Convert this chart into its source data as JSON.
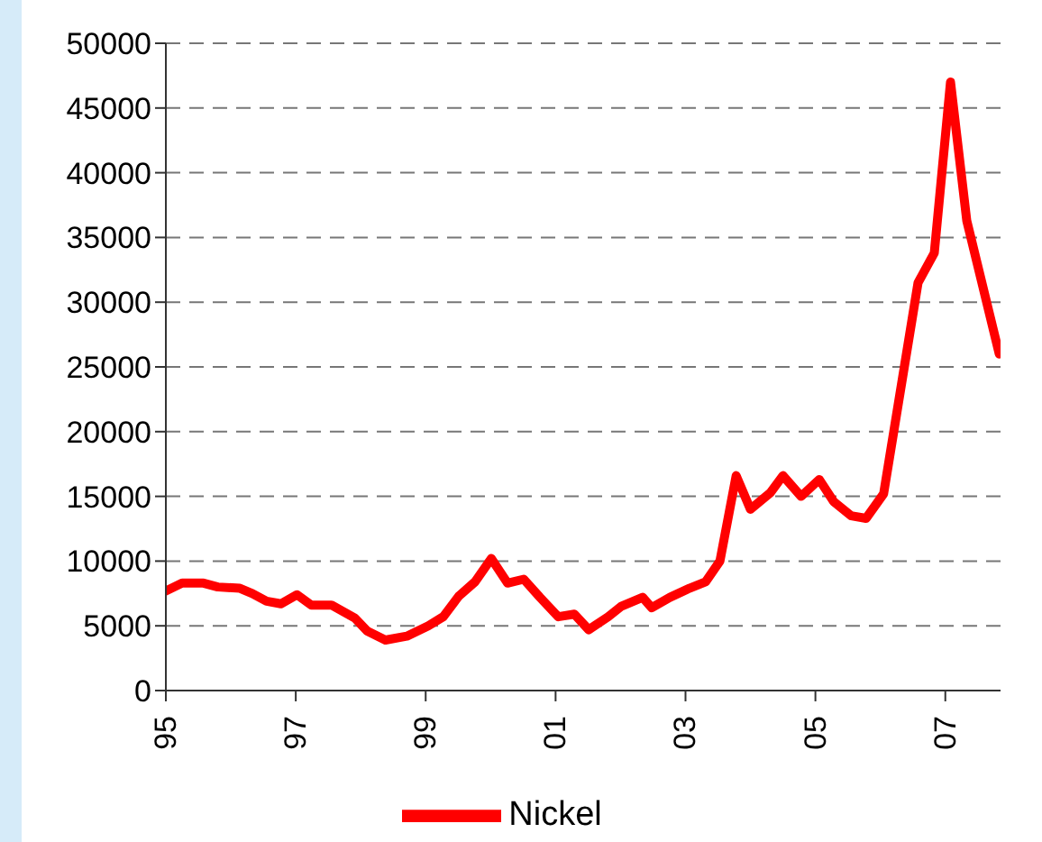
{
  "chart_data": {
    "type": "line",
    "x": [
      1995.0,
      1995.25,
      1995.58,
      1995.8,
      1996.14,
      1996.33,
      1996.55,
      1996.77,
      1997.02,
      1997.24,
      1997.55,
      1997.91,
      1998.1,
      1998.38,
      1998.71,
      1999.04,
      1999.27,
      1999.51,
      1999.76,
      2000.01,
      2000.26,
      2000.51,
      2000.76,
      2001.04,
      2001.29,
      2001.51,
      2001.81,
      2002.01,
      2002.34,
      2002.48,
      2002.76,
      2003.06,
      2003.31,
      2003.53,
      2003.78,
      2004.0,
      2004.31,
      2004.5,
      2004.78,
      2005.06,
      2005.28,
      2005.55,
      2005.78,
      2006.05,
      2006.58,
      2006.83,
      2007.08,
      2007.33,
      2007.83
    ],
    "series": [
      {
        "name": "Nickel",
        "color": "#ff0000",
        "values": [
          7700,
          8300,
          8300,
          8000,
          7900,
          7500,
          6900,
          6700,
          7400,
          6600,
          6600,
          5600,
          4600,
          3900,
          4200,
          5000,
          5700,
          7300,
          8400,
          10200,
          8300,
          8600,
          7200,
          5700,
          5900,
          4700,
          5700,
          6500,
          7200,
          6400,
          7200,
          7900,
          8400,
          10000,
          16600,
          14000,
          15300,
          16600,
          15000,
          16300,
          14600,
          13500,
          13300,
          15200,
          31500,
          33800,
          47000,
          36300,
          26000
        ]
      }
    ],
    "xlim": [
      1995,
      2007.85
    ],
    "xticks": [
      {
        "value": 1995,
        "label": "95"
      },
      {
        "value": 1997,
        "label": "97"
      },
      {
        "value": 1999,
        "label": "99"
      },
      {
        "value": 2001,
        "label": "01"
      },
      {
        "value": 2003,
        "label": "03"
      },
      {
        "value": 2005,
        "label": "05"
      },
      {
        "value": 2007,
        "label": "07"
      }
    ],
    "ylim": [
      0,
      50000
    ],
    "yticks": [
      0,
      5000,
      10000,
      15000,
      20000,
      25000,
      30000,
      35000,
      40000,
      45000,
      50000
    ],
    "grid": "y",
    "legend": "bottom",
    "marker": "none",
    "line_style": "solid"
  }
}
